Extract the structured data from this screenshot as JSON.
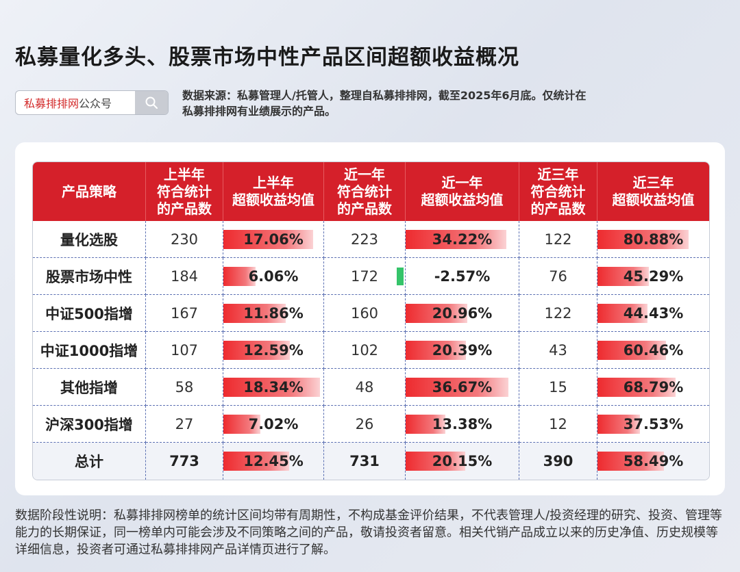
{
  "title": "私募量化多头、股票市场中性产品区间超额收益概况",
  "search": {
    "brand": "私募排排网",
    "suffix": "公众号",
    "icon": "search-icon"
  },
  "source_text": "数据来源：私募管理人/托管人，整理自私募排排网，截至2025年6月底。仅统计在私募排排网有业绩展示的产品。",
  "table": {
    "headers": [
      [
        "产品策略"
      ],
      [
        "上半年",
        "符合统计",
        "的产品数"
      ],
      [
        "上半年",
        "超额收益均值"
      ],
      [
        "近一年",
        "符合统计",
        "的产品数"
      ],
      [
        "近一年",
        "超额收益均值"
      ],
      [
        "近三年",
        "符合统计",
        "的产品数"
      ],
      [
        "近三年",
        "超额收益均值"
      ]
    ],
    "rows": [
      {
        "strategy": "量化选股",
        "h1_count": "230",
        "h1_excess": "17.06%",
        "y1_count": "223",
        "y1_excess": "34.22%",
        "y3_count": "122",
        "y3_excess": "80.88%"
      },
      {
        "strategy": "股票市场中性",
        "h1_count": "184",
        "h1_excess": "6.06%",
        "y1_count": "172",
        "y1_excess": "-2.57%",
        "y3_count": "76",
        "y3_excess": "45.29%"
      },
      {
        "strategy": "中证500指增",
        "h1_count": "167",
        "h1_excess": "11.86%",
        "y1_count": "160",
        "y1_excess": "20.96%",
        "y3_count": "122",
        "y3_excess": "44.43%"
      },
      {
        "strategy": "中证1000指增",
        "h1_count": "107",
        "h1_excess": "12.59%",
        "y1_count": "102",
        "y1_excess": "20.39%",
        "y3_count": "43",
        "y3_excess": "60.46%"
      },
      {
        "strategy": "其他指增",
        "h1_count": "58",
        "h1_excess": "18.34%",
        "y1_count": "48",
        "y1_excess": "36.67%",
        "y3_count": "15",
        "y3_excess": "68.79%"
      },
      {
        "strategy": "沪深300指增",
        "h1_count": "27",
        "h1_excess": "7.02%",
        "y1_count": "26",
        "y1_excess": "13.38%",
        "y3_count": "12",
        "y3_excess": "37.53%"
      }
    ],
    "total": {
      "strategy": "总计",
      "h1_count": "773",
      "h1_excess": "12.45%",
      "y1_count": "731",
      "y1_excess": "20.15%",
      "y3_count": "390",
      "y3_excess": "58.49%"
    }
  },
  "footnote": "数据阶段性说明：私募排排网榜单的统计区间均带有周期性，不构成基金评价结果，不代表管理人/投资经理的研究、投资、管理等能力的长期保证，同一榜单内可能会涉及不同策略之间的产品，敬请投资者留意。相关代销产品成立以来的历史净值、历史规模等详细信息，投资者可通过私募排排网产品详情页进行了解。",
  "colors": {
    "header_red": "#d5202a",
    "bar_red": "#ee2b2f",
    "bar_green": "#35c46a",
    "brand_red": "#d32a2a"
  }
}
